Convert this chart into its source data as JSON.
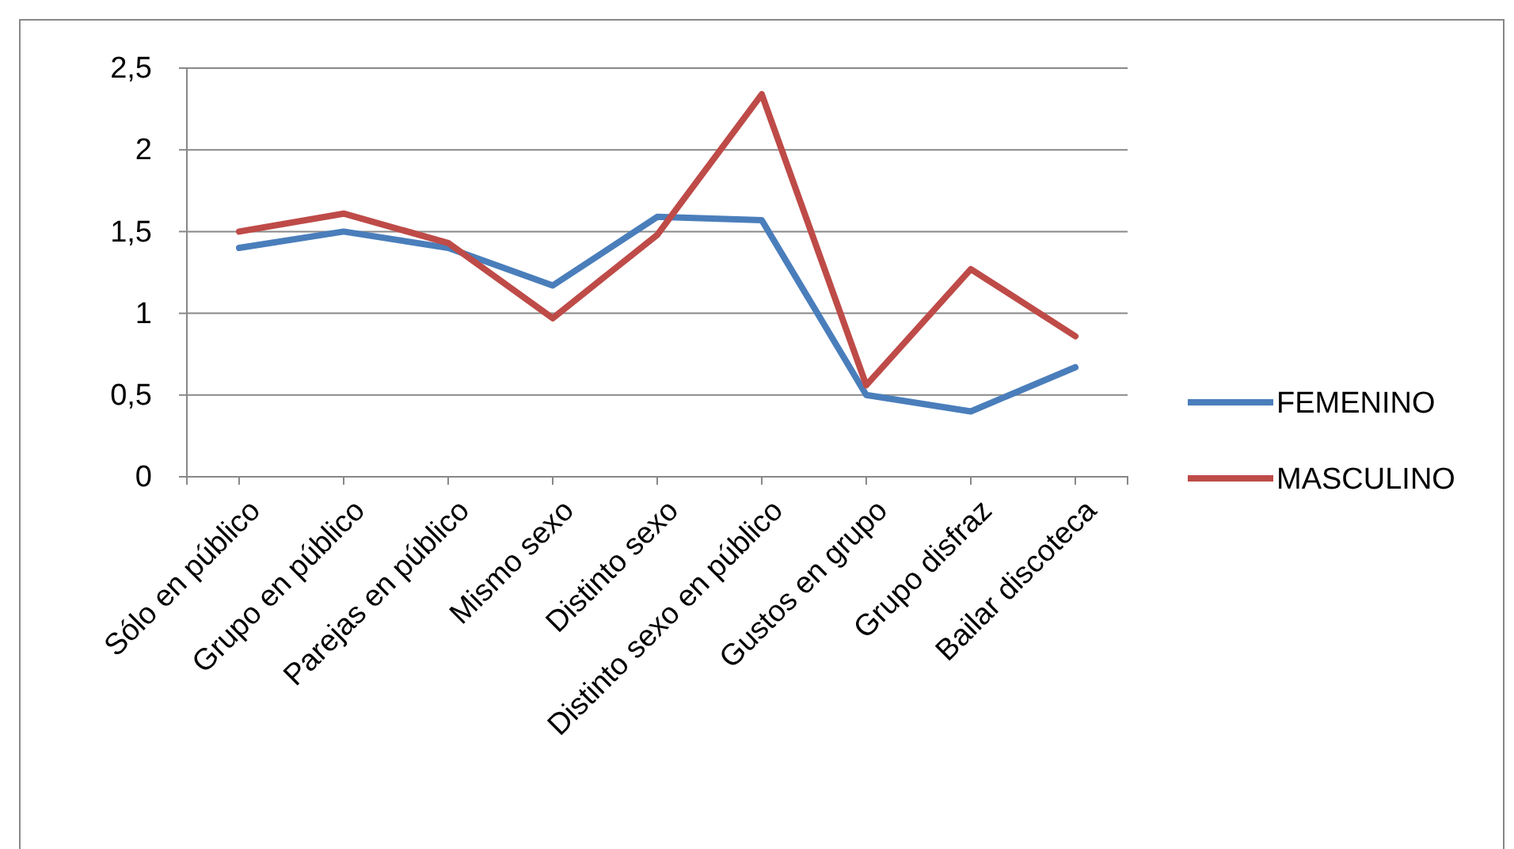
{
  "chart_data": {
    "type": "line",
    "categories": [
      "Sólo en público",
      "Grupo en público",
      "Parejas en público",
      "Mismo sexo",
      "Distinto sexo",
      "Distinto sexo en público",
      "Gustos en grupo",
      "Grupo disfraz",
      "Bailar discoteca"
    ],
    "series": [
      {
        "name": "FEMENINO",
        "color": "#4a7ebb",
        "values": [
          1.4,
          1.5,
          1.4,
          1.17,
          1.59,
          1.57,
          0.5,
          0.4,
          0.67
        ]
      },
      {
        "name": "MASCULINO",
        "color": "#be4b48",
        "values": [
          1.5,
          1.61,
          1.43,
          0.97,
          1.48,
          2.34,
          0.56,
          1.27,
          0.86
        ]
      }
    ],
    "ylim": [
      0,
      2.5
    ],
    "yticks": [
      0,
      {
        "value": 0.5,
        "label": "0,5"
      },
      1,
      {
        "value": 1.5,
        "label": "1,5"
      },
      2,
      {
        "value": 2.5,
        "label": "2,5"
      }
    ],
    "grid": "y",
    "legend": "right",
    "marker": "none",
    "line_style": "solid"
  }
}
